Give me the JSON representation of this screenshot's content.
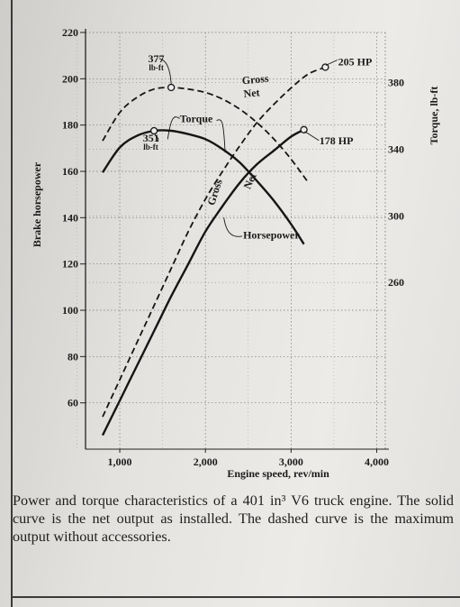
{
  "caption": "Power and torque characteristics of a 401 in³ V6 truck engine. The solid curve is the net output as installed. The dashed curve is the maximum output without accessories.",
  "chart_data": {
    "type": "line",
    "xlabel": "Engine speed, rev/min",
    "ylabel_left": "Brake horsepower",
    "ylabel_right": "Torque, lb-ft",
    "xlim": [
      600,
      4100
    ],
    "ylim_left": [
      40,
      220
    ],
    "ylim_right": [
      160,
      410
    ],
    "x_ticks": [
      "1,000",
      "2,000",
      "3,000",
      "4,000"
    ],
    "x_tick_values": [
      1000,
      2000,
      3000,
      4000
    ],
    "y_ticks_left": [
      "220",
      "200",
      "180",
      "160",
      "140",
      "120",
      "100",
      "80",
      "60"
    ],
    "y_tick_values_left": [
      220,
      200,
      180,
      160,
      140,
      120,
      100,
      80,
      60
    ],
    "y_ticks_right": [
      "380",
      "340",
      "300",
      "260"
    ],
    "y_tick_values_right": [
      380,
      340,
      300,
      260
    ],
    "grid": true,
    "series": [
      {
        "name": "Gross",
        "quantity": "Horsepower",
        "axis": "left",
        "style": "dashed",
        "x": [
          800,
          1000,
          1200,
          1400,
          1600,
          1800,
          2000,
          2200,
          2400,
          2600,
          2800,
          3000,
          3200,
          3400
        ],
        "y": [
          54,
          70,
          86,
          102,
          118,
          134,
          148,
          160,
          171,
          181,
          189,
          196,
          202,
          205
        ]
      },
      {
        "name": "Net",
        "quantity": "Horsepower",
        "axis": "left",
        "style": "solid",
        "x": [
          800,
          1000,
          1200,
          1400,
          1600,
          1800,
          2000,
          2200,
          2400,
          2600,
          2800,
          3000,
          3150
        ],
        "y": [
          46,
          61,
          76,
          91,
          106,
          120,
          134,
          145,
          155,
          163,
          169,
          175,
          178
        ]
      },
      {
        "name": "Gross",
        "quantity": "Torque",
        "axis": "right",
        "style": "dashed",
        "x": [
          800,
          1000,
          1200,
          1400,
          1600,
          1800,
          2000,
          2200,
          2400,
          2600,
          2800,
          3000,
          3200
        ],
        "y": [
          345,
          362,
          371,
          376,
          377,
          376,
          374,
          370,
          364,
          356,
          346,
          334,
          320
        ]
      },
      {
        "name": "Net",
        "quantity": "Torque",
        "axis": "right",
        "style": "solid",
        "x": [
          800,
          1000,
          1200,
          1400,
          1600,
          1800,
          2000,
          2200,
          2400,
          2600,
          2800,
          3000,
          3150
        ],
        "y": [
          326,
          341,
          348,
          351,
          351,
          349,
          346,
          340,
          332,
          321,
          309,
          295,
          283
        ]
      }
    ],
    "annotations": {
      "peak_net_torque": "351 lb-ft",
      "peak_gross_torque": "377 lb-ft",
      "peak_gross_hp": "205 HP",
      "peak_net_hp": "178 HP",
      "label_gross_torque": "Gross",
      "label_net_torque": "Net",
      "label_torque": "Torque",
      "label_gross_hp": "Gross",
      "label_net_hp": "Net",
      "label_horsepower": "Horsepower"
    }
  }
}
